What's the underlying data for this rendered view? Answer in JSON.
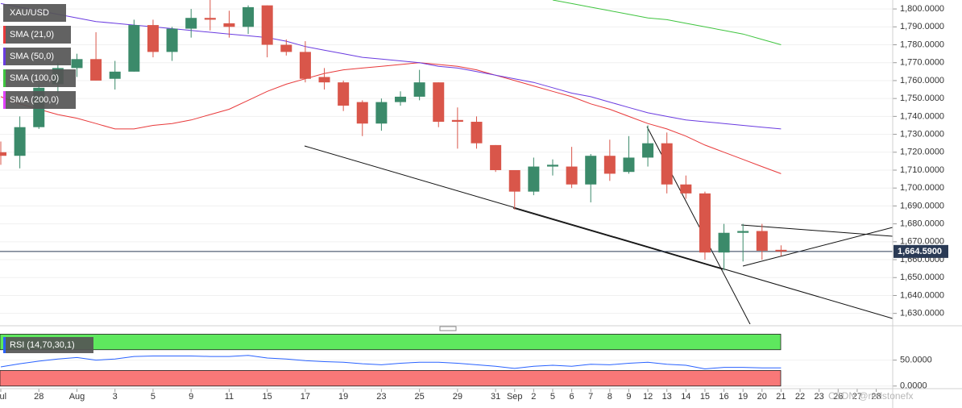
{
  "chart_data": [
    {
      "type": "candlestick",
      "title": "XAU/USD",
      "categories": [
        "Jul",
        null,
        "28",
        null,
        "Aug",
        null,
        "3",
        null,
        "5",
        null,
        "9",
        null,
        "11",
        null,
        "15",
        null,
        "17",
        null,
        "19",
        null,
        "23",
        null,
        "25",
        null,
        "29",
        null,
        "31",
        "Sep",
        "2",
        "5",
        "6",
        "7",
        "8",
        "9",
        "12",
        "13",
        "14",
        "15",
        "16",
        "19",
        "20",
        "21",
        "22",
        "23",
        "26",
        "27",
        "28"
      ],
      "open": [
        1720,
        1718,
        1734,
        1758,
        1767,
        1772,
        1761,
        1765,
        1791,
        1776,
        1789,
        1795,
        1792,
        1790,
        1802,
        1780,
        1776,
        1762,
        1759,
        1748,
        1736,
        1748,
        1751,
        1759,
        1738,
        1737,
        1724,
        1710,
        1698,
        1712,
        1712,
        1702,
        1718,
        1709,
        1717,
        1725,
        1702,
        1697,
        1664,
        1675,
        1676,
        1665.5,
        null,
        null,
        null,
        null,
        null
      ],
      "high": [
        1726,
        1740,
        1758,
        1770,
        1775,
        1787,
        1771,
        1794,
        1794,
        1790,
        1800,
        1805,
        1799,
        1802,
        1802,
        1783,
        1782,
        1767,
        1760,
        1749,
        1750,
        1754,
        1766,
        1759,
        1745,
        1740,
        1724,
        1710,
        1717,
        1716,
        1723,
        1719,
        1727,
        1729,
        1735,
        1731,
        1707,
        1698,
        1680,
        1680,
        1680,
        1668,
        null,
        null,
        null,
        null,
        null
      ],
      "low": [
        1713,
        1711,
        1733,
        1753,
        1762,
        1760,
        1755,
        1765,
        1773,
        1771,
        1784,
        1788,
        1784,
        1786,
        1773,
        1774,
        1759,
        1755,
        1743,
        1729,
        1732,
        1746,
        1749,
        1734,
        1722,
        1722,
        1709,
        1688,
        1696,
        1707,
        1700,
        1692,
        1704,
        1708,
        1712,
        1697,
        1694,
        1660,
        1654,
        1659,
        1660,
        1662,
        null,
        null,
        null,
        null,
        null
      ],
      "close": [
        1718,
        1734,
        1756,
        1767,
        1772,
        1760,
        1765,
        1791,
        1776,
        1789,
        1795,
        1794,
        1790,
        1801,
        1780,
        1776,
        1761,
        1759,
        1746,
        1736,
        1748,
        1751,
        1759,
        1737,
        1737,
        1725,
        1710,
        1698,
        1712,
        1713,
        1702,
        1718,
        1708,
        1717,
        1725,
        1702,
        1697,
        1664,
        1675,
        1676,
        1665,
        1664.59,
        null,
        null,
        null,
        null,
        null
      ],
      "up_color": "#3b8a6a",
      "down_color": "#d9564a",
      "series": [
        {
          "name": "SMA (21,0)",
          "color": "#e8393a",
          "values": [
            1751,
            1747,
            1744,
            1741,
            1739,
            1736,
            1733,
            1733,
            1735,
            1736,
            1738,
            1741,
            1744,
            1749,
            1754,
            1758,
            1761,
            1764,
            1766,
            1767,
            1768,
            1769,
            1770,
            1769,
            1768,
            1766,
            1763,
            1760,
            1757,
            1754,
            1751,
            1747,
            1744,
            1740,
            1736,
            1733,
            1729,
            1724,
            1720,
            1716,
            1712,
            1708,
            null,
            null,
            null,
            null,
            null
          ]
        },
        {
          "name": "SMA (50,0)",
          "color": "#6a3be0",
          "values": [
            1803,
            1801,
            1799,
            1797,
            1795,
            1793,
            1792,
            1791,
            1790,
            1789,
            1788,
            1787,
            1786,
            1785,
            1784,
            1782,
            1779,
            1777,
            1775,
            1773,
            1772,
            1771,
            1770,
            1768,
            1767,
            1765,
            1763,
            1761,
            1759,
            1756,
            1753,
            1751,
            1748,
            1745,
            1742,
            1740,
            1738,
            1737,
            1736,
            1735,
            1734,
            1733,
            null,
            null,
            null,
            null,
            null
          ]
        },
        {
          "name": "SMA (100,0)",
          "color": "#3fc43f",
          "values": [
            null,
            null,
            null,
            null,
            null,
            null,
            null,
            null,
            null,
            null,
            null,
            null,
            null,
            null,
            null,
            null,
            null,
            null,
            null,
            null,
            null,
            null,
            null,
            null,
            null,
            null,
            null,
            null,
            null,
            1805,
            1803,
            1801,
            1799,
            1797,
            1795,
            1794,
            1792,
            1790,
            1788,
            1786,
            1783,
            1780,
            null,
            null,
            null,
            null,
            null
          ]
        },
        {
          "name": "SMA (200,0)",
          "color": "#e040fb",
          "values": [
            null,
            null,
            null,
            null,
            null,
            null,
            null,
            null,
            null,
            null,
            null,
            null,
            null,
            null,
            null,
            null,
            null,
            null,
            null,
            null,
            null,
            null,
            null,
            null,
            null,
            null,
            null,
            null,
            null,
            null,
            null,
            null,
            null,
            null,
            null,
            null,
            null,
            null,
            null,
            null,
            null,
            null,
            null,
            null,
            null,
            null,
            null
          ]
        }
      ],
      "ylim": [
        1624,
        1805
      ],
      "yticks": [
        {
          "value": 1630,
          "label": "1,630.0000"
        },
        {
          "value": 1640,
          "label": "1,640.0000"
        },
        {
          "value": 1650,
          "label": "1,650.0000"
        },
        {
          "value": 1660,
          "label": "1,660.0000"
        },
        {
          "value": 1670,
          "label": "1,670.0000"
        },
        {
          "value": 1680,
          "label": "1,680.0000"
        },
        {
          "value": 1690,
          "label": "1,690.0000"
        },
        {
          "value": 1700,
          "label": "1,700.0000"
        },
        {
          "value": 1710,
          "label": "1,710.0000"
        },
        {
          "value": 1720,
          "label": "1,720.0000"
        },
        {
          "value": 1730,
          "label": "1,730.0000"
        },
        {
          "value": 1740,
          "label": "1,740.0000"
        },
        {
          "value": 1750,
          "label": "1,750.0000"
        },
        {
          "value": 1760,
          "label": "1,760.0000"
        },
        {
          "value": 1770,
          "label": "1,770.0000"
        },
        {
          "value": 1780,
          "label": "1,780.0000"
        },
        {
          "value": 1790,
          "label": "1,790.0000"
        },
        {
          "value": 1800,
          "label": "1,800.0000"
        }
      ],
      "last_price": 1664.59,
      "last_price_label": "1,664.5900"
    },
    {
      "type": "line",
      "series": [
        {
          "name": "RSI (14,70,30,1)",
          "color": "#2962ff",
          "values": [
            37,
            43,
            48,
            52,
            55,
            50,
            52,
            57,
            58,
            58,
            58,
            57,
            57,
            59,
            54,
            52,
            49,
            47,
            46,
            43,
            41,
            44,
            46,
            46,
            44,
            41,
            38,
            34,
            38,
            40,
            38,
            42,
            41,
            44,
            46,
            42,
            40,
            33,
            36,
            36,
            35,
            35,
            null,
            null,
            null,
            null,
            null
          ]
        }
      ],
      "bands": [
        {
          "range": [
            70,
            100
          ],
          "color": "#5ee85e"
        },
        {
          "range": [
            0,
            30
          ],
          "color": "#f87878"
        }
      ],
      "ylim": [
        -5,
        110
      ],
      "yticks": [
        {
          "value": 0,
          "label": "0.0000"
        },
        {
          "value": 50,
          "label": "50.0000"
        }
      ]
    }
  ],
  "watermark": "CSDN @redstonefx"
}
